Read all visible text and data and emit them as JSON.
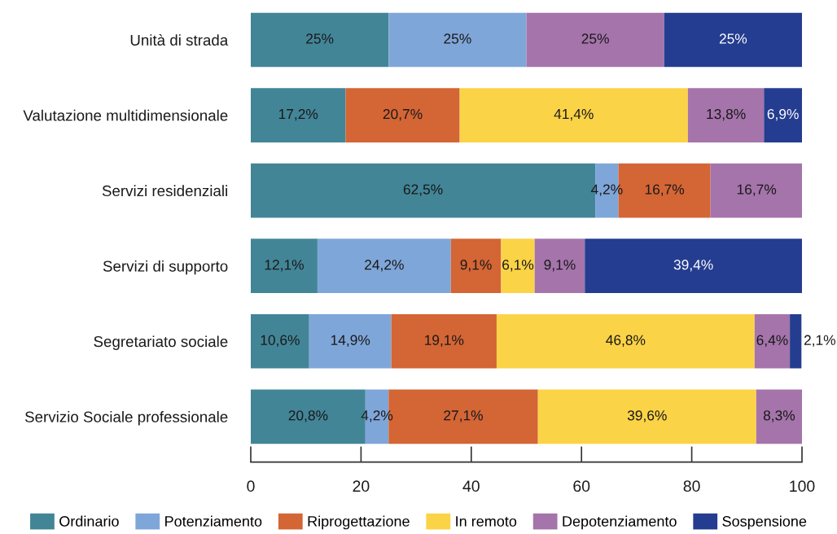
{
  "chart_data": {
    "type": "bar",
    "orientation": "horizontal",
    "stacked": true,
    "categories": [
      "Unità di strada",
      "Valutazione multidimensionale",
      "Servizi residenziali",
      "Servizi di supporto",
      "Segretariato sociale",
      "Servizio Sociale professionale"
    ],
    "series": [
      {
        "name": "Ordinario",
        "color": "#428597",
        "values": [
          25,
          17.2,
          62.5,
          12.1,
          10.6,
          20.8
        ],
        "value_labels": [
          "25%",
          "17,2%",
          "62,5%",
          "12,1%",
          "10,6%",
          "20,8%"
        ]
      },
      {
        "name": "Potenziamento",
        "color": "#7fa6d9",
        "values": [
          25,
          null,
          4.2,
          24.2,
          14.9,
          4.2
        ],
        "value_labels": [
          "25%",
          null,
          "4,2%",
          "24,2%",
          "14,9%",
          "4,2%"
        ]
      },
      {
        "name": "Riprogettazione",
        "color": "#d46535",
        "values": [
          null,
          20.7,
          16.7,
          9.1,
          19.1,
          27.1
        ],
        "value_labels": [
          null,
          "20,7%",
          "16,7%",
          "9,1%",
          "19,1%",
          "27,1%"
        ]
      },
      {
        "name": "In remoto",
        "color": "#fbd346",
        "values": [
          null,
          41.4,
          null,
          6.1,
          46.8,
          39.6
        ],
        "value_labels": [
          null,
          "41,4%",
          null,
          "6,1%",
          "46,8%",
          "39,6%"
        ]
      },
      {
        "name": "Depotenziamento",
        "color": "#a574ab",
        "values": [
          25,
          13.8,
          16.7,
          9.1,
          6.4,
          8.3
        ],
        "value_labels": [
          "25%",
          "13,8%",
          "16,7%",
          "9,1%",
          "6,4%",
          "8,3%"
        ]
      },
      {
        "name": "Sospensione",
        "color": "#243d90",
        "values": [
          25,
          6.9,
          null,
          39.4,
          2.1,
          null
        ],
        "value_labels": [
          "25%",
          "6,9%",
          null,
          "39,4%",
          "2,1%",
          null
        ]
      }
    ],
    "xlim": [
      0,
      100
    ],
    "xticks": [
      0,
      20,
      40,
      60,
      80,
      100
    ],
    "grid": false,
    "legend": "bottom"
  }
}
